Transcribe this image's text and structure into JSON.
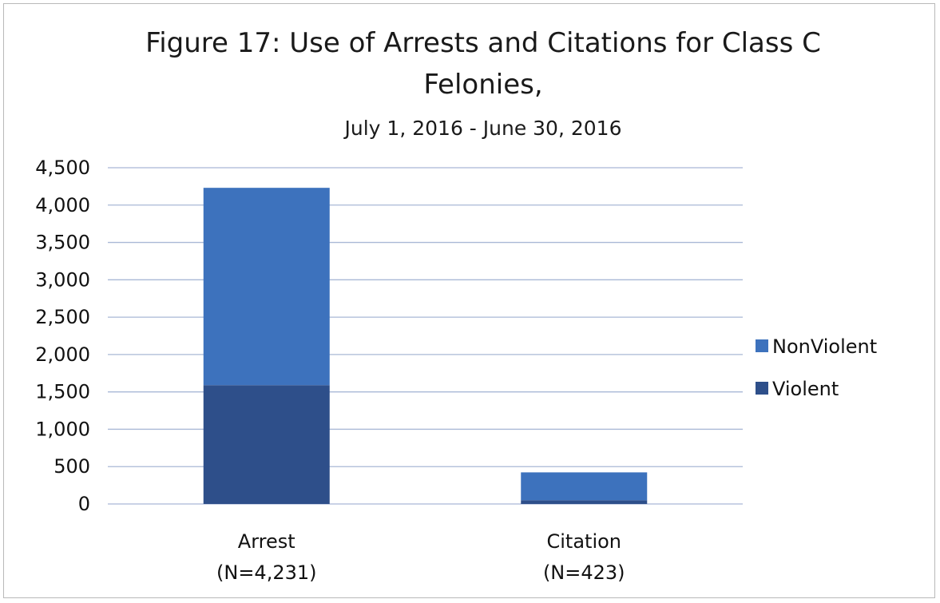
{
  "chart_data": {
    "type": "bar",
    "stacked": true,
    "title": "Figure 17: Use of Arrests and Citations for Class C Felonies,",
    "title_lines": [
      "Figure 17: Use of Arrests and Citations for Class C",
      "Felonies,"
    ],
    "subtitle": "July 1, 2016  - June 30, 2016",
    "categories": [
      "Arrest (N=4,231)",
      "Citation (N=423)"
    ],
    "category_lines": [
      [
        "Arrest",
        "(N=4,231)"
      ],
      [
        "Citation",
        "(N=423)"
      ]
    ],
    "series": [
      {
        "name": "Violent",
        "values": [
          1590,
          50
        ],
        "color": "#2e4f8a"
      },
      {
        "name": "NonViolent",
        "values": [
          2641,
          373
        ],
        "color": "#3d72bd"
      }
    ],
    "ylim": [
      0,
      4500
    ],
    "yticks": [
      0,
      500,
      1000,
      1500,
      2000,
      2500,
      3000,
      3500,
      4000,
      4500
    ],
    "ytick_labels": [
      "0",
      "500",
      "1,000",
      "1,500",
      "2,000",
      "2,500",
      "3,000",
      "3,500",
      "4,000",
      "4,500"
    ],
    "xlabel": "",
    "ylabel": "",
    "grid": true,
    "legend_position": "right",
    "legend_order": [
      "NonViolent",
      "Violent"
    ],
    "gridline_color": "#a9b8d6"
  }
}
